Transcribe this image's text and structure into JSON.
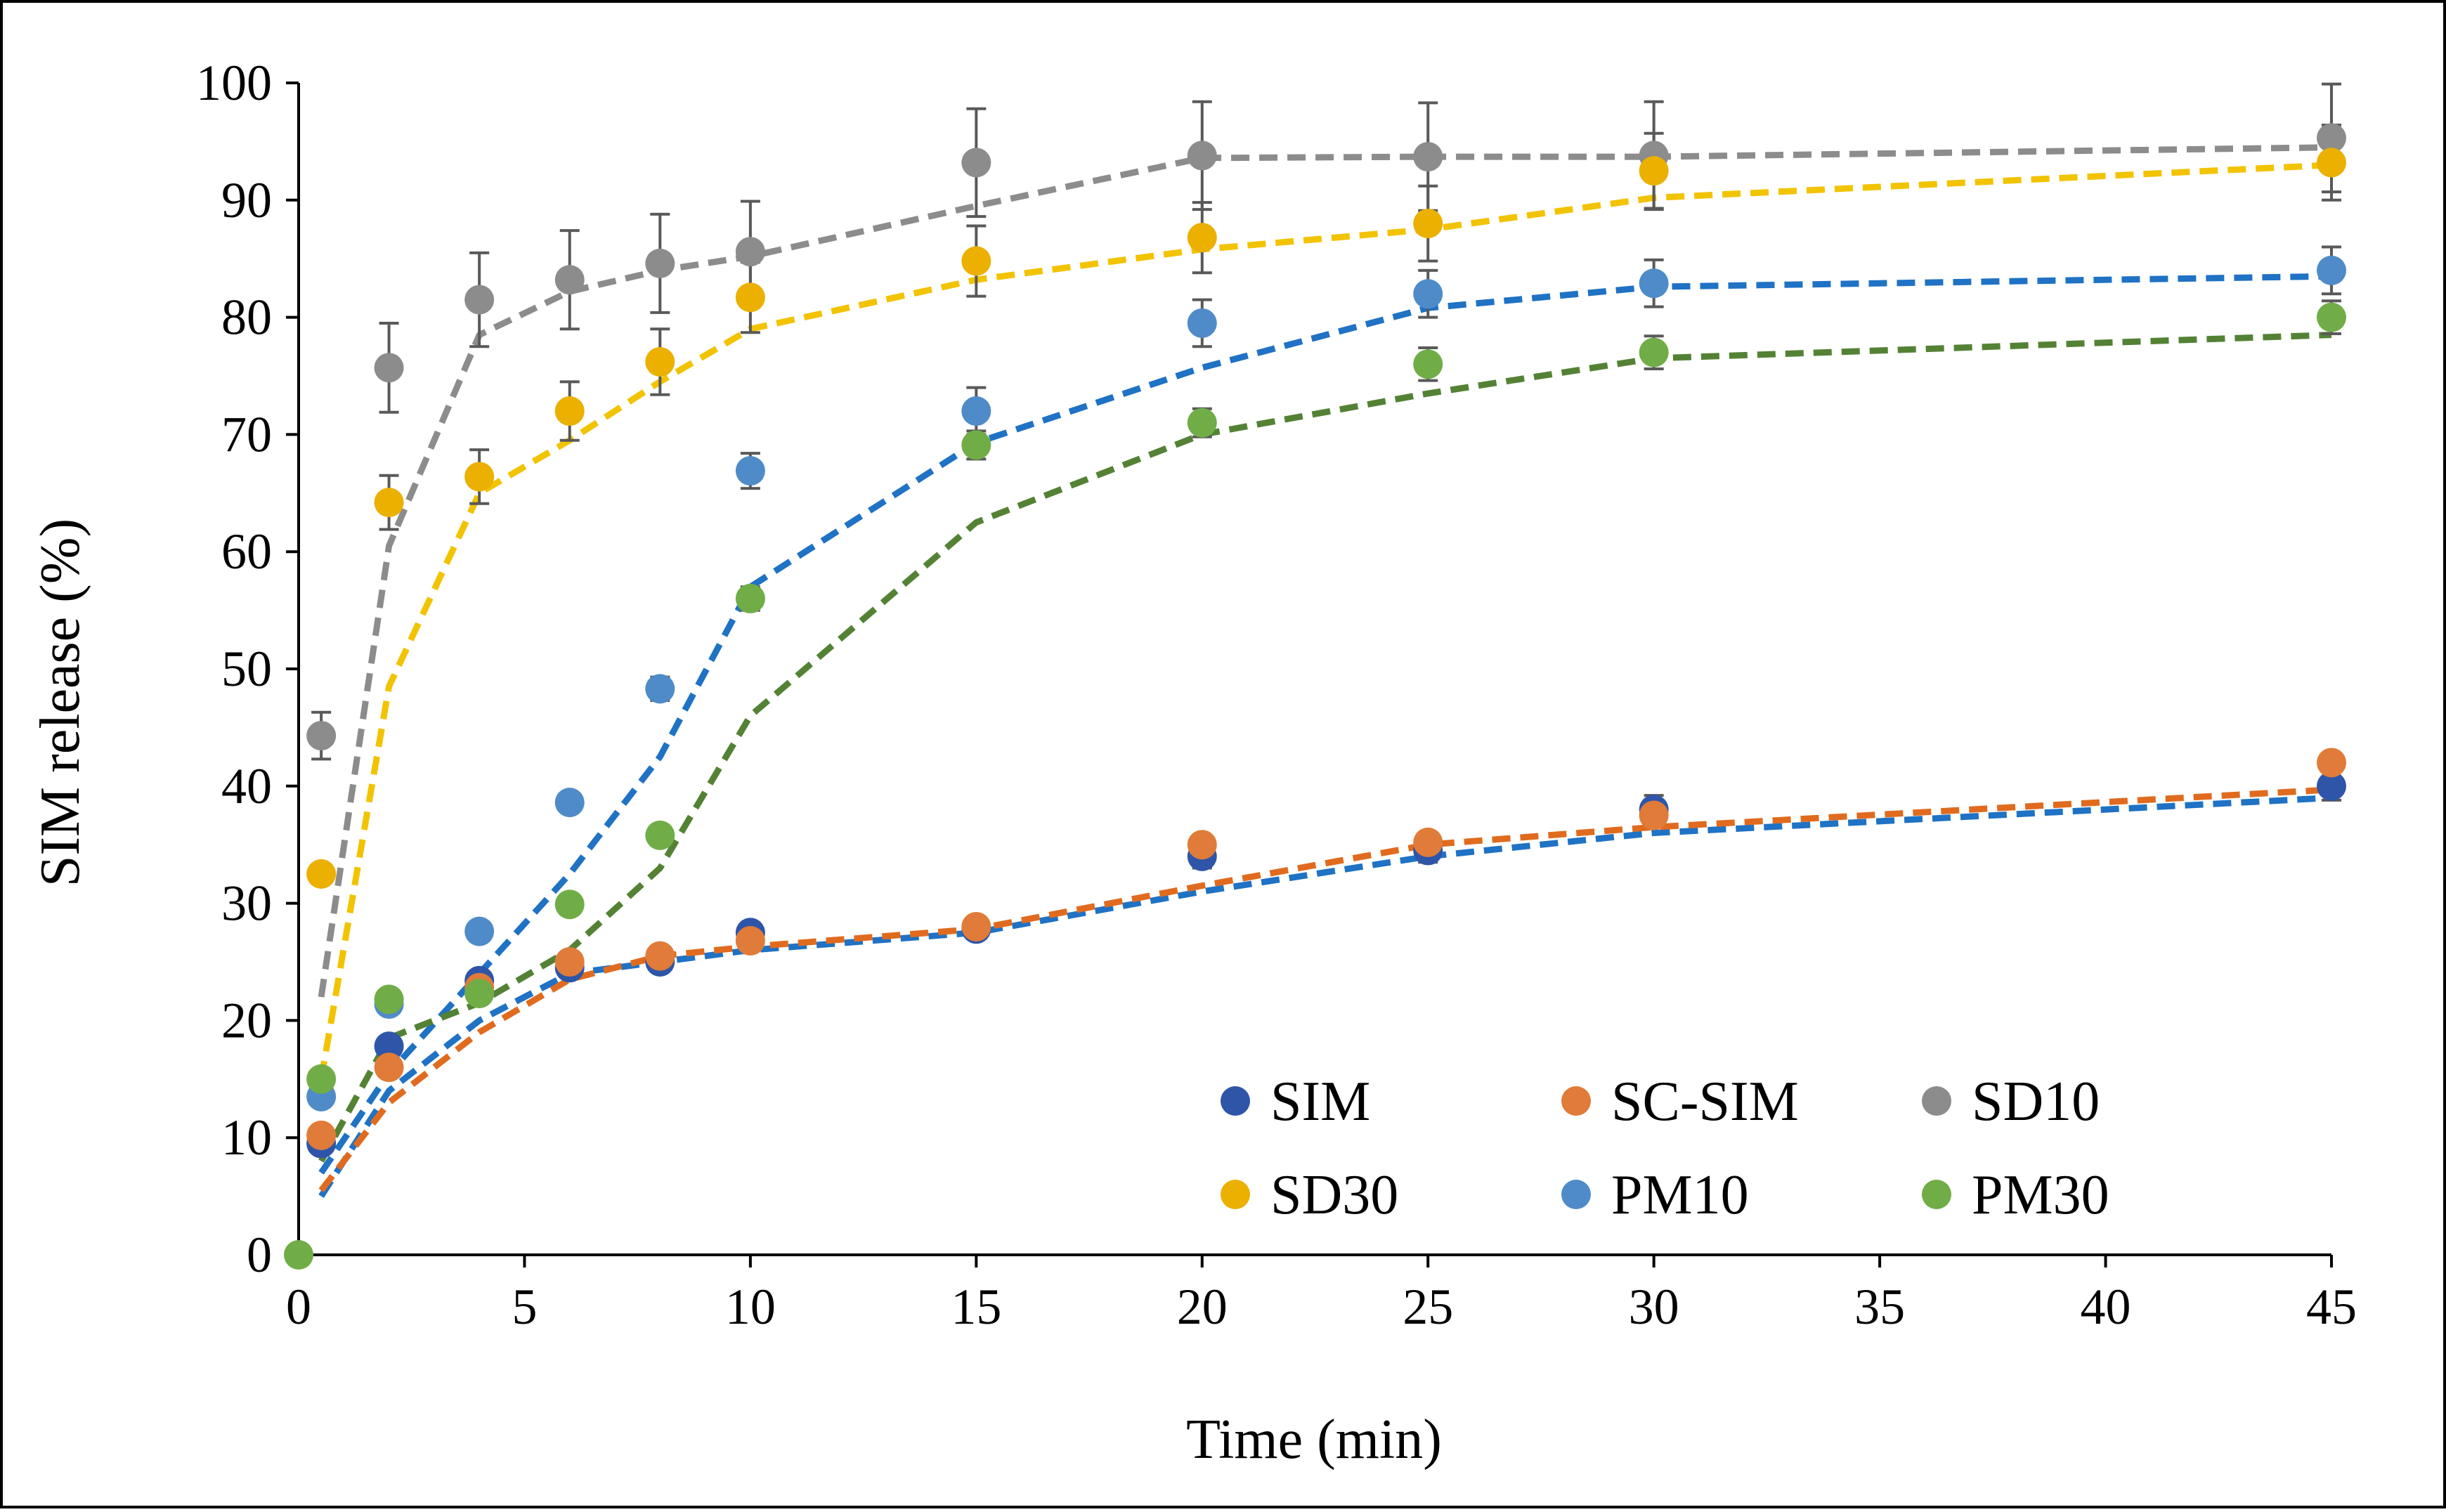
{
  "chart_data": {
    "type": "scatter",
    "title": "",
    "xlabel": "Time (min)",
    "ylabel": "SIM release (%)",
    "xlim": [
      0,
      45
    ],
    "ylim": [
      0,
      100
    ],
    "xticks": [
      0,
      5,
      10,
      15,
      20,
      25,
      30,
      35,
      40,
      45
    ],
    "yticks": [
      0,
      10,
      20,
      30,
      40,
      50,
      60,
      70,
      80,
      90,
      100
    ],
    "grid": false,
    "legend_position": "bottom-right",
    "origin_point": {
      "x": 0,
      "y": 0,
      "color": "#70AD47"
    },
    "series": [
      {
        "name": "SIM",
        "color": "#2E55A8",
        "x": [
          0.5,
          2,
          4,
          6,
          8,
          10,
          15,
          20,
          25,
          30,
          45
        ],
        "y": [
          9.5,
          17.8,
          23.4,
          24.5,
          25.0,
          27.5,
          27.8,
          34.0,
          34.5,
          38.0,
          40.0
        ],
        "error": [
          0.5,
          0.5,
          0.5,
          0.5,
          0.5,
          0.8,
          0.8,
          1.0,
          1.0,
          1.2,
          1.2
        ]
      },
      {
        "name": "SC-SIM",
        "color": "#E07B39",
        "x": [
          0.5,
          2,
          4,
          6,
          8,
          10,
          15,
          20,
          25,
          30,
          45
        ],
        "y": [
          10.2,
          16.0,
          22.8,
          25.0,
          25.5,
          26.8,
          28.0,
          35.0,
          35.2,
          37.5,
          42.0
        ],
        "error": [
          0.5,
          0.5,
          0.5,
          0.5,
          0.5,
          0.5,
          0.5,
          0.8,
          0.8,
          0.8,
          0.8
        ]
      },
      {
        "name": "SD10",
        "color": "#8C8C8C",
        "x": [
          0.5,
          2,
          4,
          6,
          8,
          10,
          15,
          20,
          25,
          30,
          45
        ],
        "y": [
          44.3,
          75.7,
          81.5,
          83.2,
          84.6,
          85.6,
          93.2,
          93.8,
          93.7,
          93.8,
          95.3
        ],
        "error": [
          2.0,
          3.8,
          4.0,
          4.2,
          4.2,
          4.3,
          4.6,
          4.6,
          4.6,
          4.6,
          4.6
        ]
      },
      {
        "name": "SD30",
        "color": "#EBB000",
        "x": [
          0.5,
          2,
          4,
          6,
          8,
          10,
          15,
          20,
          25,
          30,
          45
        ],
        "y": [
          32.5,
          64.2,
          66.4,
          72.0,
          76.2,
          81.7,
          84.8,
          86.8,
          88.0,
          92.5,
          93.2
        ],
        "error": [
          0.5,
          2.3,
          2.3,
          2.5,
          2.8,
          3.0,
          3.0,
          3.0,
          3.2,
          3.2,
          3.2
        ]
      },
      {
        "name": "PM10",
        "color": "#4F8BC8",
        "x": [
          0.5,
          2,
          4,
          6,
          8,
          10,
          15,
          20,
          25,
          30,
          45
        ],
        "y": [
          13.5,
          21.4,
          27.6,
          38.6,
          48.3,
          66.9,
          72.0,
          79.5,
          82.0,
          82.9,
          84.0
        ],
        "error": [
          0.5,
          0.5,
          0.5,
          0.8,
          1.0,
          1.5,
          2.0,
          2.0,
          2.0,
          2.0,
          2.0
        ]
      },
      {
        "name": "PM30",
        "color": "#70AD47",
        "x": [
          0.5,
          2,
          4,
          6,
          8,
          10,
          15,
          20,
          25,
          30,
          45
        ],
        "y": [
          15.0,
          21.8,
          22.3,
          29.9,
          35.8,
          56.0,
          69.1,
          71.0,
          76.0,
          77.0,
          80.0
        ],
        "error": [
          0.5,
          0.5,
          0.5,
          0.5,
          0.5,
          1.0,
          1.2,
          1.2,
          1.4,
          1.4,
          1.4
        ]
      }
    ],
    "fit_lines": [
      {
        "name": "SD10-fit",
        "color": "#8C8C8C",
        "x": [
          0.5,
          2,
          4,
          6,
          8,
          10,
          15,
          20,
          25,
          30,
          45
        ],
        "y": [
          22,
          60.5,
          78.5,
          82.2,
          84.0,
          85.2,
          89.5,
          93.6,
          93.7,
          93.7,
          94.5
        ]
      },
      {
        "name": "SD30-fit",
        "color": "#F2C300",
        "x": [
          0.5,
          2,
          4,
          6,
          8,
          10,
          15,
          20,
          25,
          30,
          45
        ],
        "y": [
          15,
          48.5,
          65.0,
          69.5,
          74.5,
          79.0,
          83.2,
          85.8,
          87.5,
          90.2,
          93.0
        ]
      },
      {
        "name": "PM10-fit",
        "color": "#1F72C4",
        "x": [
          0.5,
          2,
          4,
          6,
          8,
          10,
          15,
          20,
          25,
          30,
          45
        ],
        "y": [
          7.0,
          15.5,
          24.0,
          32.5,
          42.5,
          57.0,
          69.3,
          75.7,
          80.8,
          82.6,
          83.5
        ]
      },
      {
        "name": "PM30-fit",
        "color": "#548235",
        "x": [
          0.5,
          2,
          4,
          6,
          8,
          10,
          15,
          20,
          25,
          30,
          45
        ],
        "y": [
          8.0,
          18.5,
          21.5,
          26.0,
          33.0,
          46.0,
          62.5,
          70.0,
          73.5,
          76.5,
          78.5
        ]
      },
      {
        "name": "SIM-fit",
        "color": "#1F72C4",
        "x": [
          0.5,
          2,
          4,
          6,
          8,
          10,
          15,
          20,
          25,
          30,
          45
        ],
        "y": [
          5.0,
          14.0,
          20.0,
          24.0,
          25.0,
          26.0,
          27.5,
          31.0,
          34.0,
          36.0,
          39.0
        ]
      },
      {
        "name": "SC-SIM-fit",
        "color": "#E06B1F",
        "x": [
          0.5,
          2,
          4,
          6,
          8,
          10,
          15,
          20,
          25,
          30,
          45
        ],
        "y": [
          5.5,
          13.0,
          19.0,
          23.5,
          25.5,
          26.3,
          27.8,
          31.5,
          35.0,
          36.5,
          39.7
        ]
      }
    ]
  }
}
